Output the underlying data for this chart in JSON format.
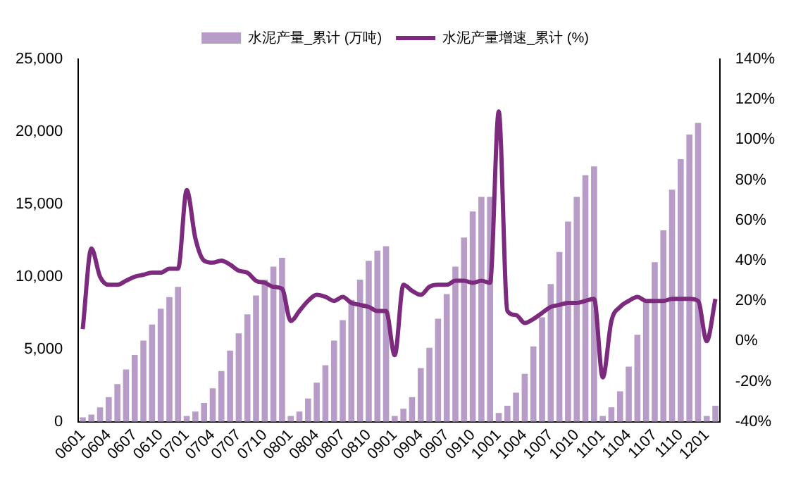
{
  "chart_data": {
    "type": "bar",
    "categories": [
      "0601",
      null,
      null,
      "0604",
      null,
      null,
      "0607",
      null,
      null,
      "0610",
      null,
      null,
      "0701",
      null,
      null,
      "0704",
      null,
      null,
      "0707",
      null,
      null,
      "0710",
      null,
      null,
      "0801",
      null,
      null,
      "0804",
      null,
      null,
      "0807",
      null,
      null,
      "0810",
      null,
      null,
      "0901",
      null,
      null,
      "0904",
      null,
      null,
      "0907",
      null,
      null,
      "0910",
      null,
      null,
      "1001",
      null,
      null,
      "1004",
      null,
      null,
      "1007",
      null,
      null,
      "1010",
      null,
      null,
      "1101",
      null,
      null,
      "1104",
      null,
      null,
      "1107",
      null,
      null,
      "1110",
      null,
      null,
      "1201",
      null
    ],
    "series": [
      {
        "name": "水泥产量_累计 (万吨)",
        "color": "#b89cc8",
        "values": [
          300,
          500,
          1000,
          1700,
          2600,
          3600,
          4600,
          5600,
          6700,
          7800,
          8600,
          9300,
          400,
          700,
          1300,
          2300,
          3500,
          4900,
          6100,
          7400,
          8700,
          9800,
          10700,
          11300,
          400,
          700,
          1600,
          2700,
          3900,
          5600,
          7000,
          8400,
          9800,
          11100,
          11800,
          12100,
          400,
          900,
          1700,
          3700,
          5100,
          7100,
          8800,
          10700,
          12700,
          14500,
          15500,
          15500,
          600,
          1100,
          2000,
          3300,
          5200,
          7200,
          9500,
          11700,
          13800,
          15500,
          17000,
          17600,
          400,
          1000,
          2100,
          3800,
          6000,
          8400,
          11000,
          13200,
          16000,
          18100,
          19800,
          20600,
          400,
          1100
        ]
      },
      {
        "name": "水泥产量增速_累计 (%)",
        "type": "line",
        "axis": "y2",
        "color": "#7b2a7e",
        "values": [
          6,
          46,
          32,
          28,
          28,
          30,
          32,
          33,
          34,
          34,
          36,
          36,
          75,
          51,
          40,
          39,
          40,
          38,
          35,
          34,
          30,
          29,
          27,
          26,
          10,
          15,
          20,
          23,
          22,
          20,
          22,
          19,
          18,
          17,
          15,
          15,
          -7,
          28,
          25,
          23,
          27,
          28,
          28,
          30,
          30,
          29,
          30,
          29,
          114,
          15,
          13,
          9,
          11,
          14,
          17,
          18,
          19,
          19,
          20,
          21,
          -18,
          10,
          17,
          20,
          22,
          20,
          20,
          20,
          21,
          21,
          21,
          20,
          0,
          21
        ]
      }
    ],
    "ylim": [
      0,
      25000
    ],
    "yticks": [
      0,
      {
        "value": 5000,
        "label": "5,000"
      },
      {
        "value": 10000,
        "label": "10,000"
      },
      {
        "value": 15000,
        "label": "15,000"
      },
      {
        "value": 20000,
        "label": "20,000"
      },
      {
        "value": 25000,
        "label": "25,000"
      }
    ],
    "y2lim": [
      -40,
      140
    ],
    "y2ticks": [
      {
        "value": -40,
        "label": "-40%"
      },
      {
        "value": -20,
        "label": "-20%"
      },
      {
        "value": 0,
        "label": "0%"
      },
      {
        "value": 20,
        "label": "20%"
      },
      {
        "value": 40,
        "label": "40%"
      },
      {
        "value": 60,
        "label": "60%"
      },
      {
        "value": 80,
        "label": "80%"
      },
      {
        "value": 100,
        "label": "100%"
      },
      {
        "value": 120,
        "label": "120%"
      },
      {
        "value": 140,
        "label": "140%"
      }
    ],
    "legend": "top",
    "marker": "none",
    "grid": false
  }
}
